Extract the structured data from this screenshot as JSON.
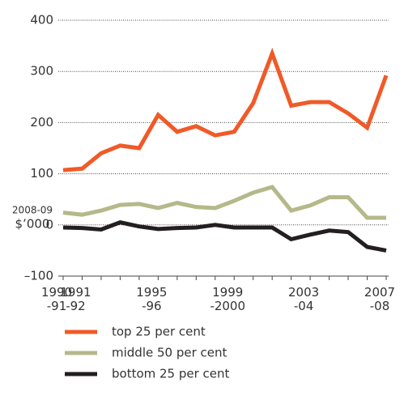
{
  "chart_data": {
    "type": "line",
    "ylabel": [
      "2008-09",
      "$’000"
    ],
    "categories": [
      "1990-91",
      "1991-92",
      null,
      null,
      null,
      "1995-96",
      null,
      null,
      null,
      "1999-2000",
      null,
      null,
      null,
      "2003-04",
      null,
      null,
      null,
      "2007-08"
    ],
    "series": [
      {
        "name": "top 25 per cent",
        "color": "#f05a28",
        "values": [
          107,
          110,
          140,
          155,
          150,
          215,
          182,
          193,
          175,
          182,
          238,
          335,
          233,
          240,
          240,
          218,
          190,
          292
        ]
      },
      {
        "name": "middle 50 per cent",
        "color": "#b5b98a",
        "values": [
          24,
          20,
          28,
          39,
          41,
          33,
          43,
          35,
          33,
          47,
          63,
          74,
          28,
          38,
          54,
          54,
          14,
          14
        ]
      },
      {
        "name": "bottom 25 per cent",
        "color": "#231f20",
        "values": [
          -5,
          -6,
          -9,
          5,
          -3,
          -8,
          -6,
          -5,
          0,
          -5,
          -5,
          -5,
          -28,
          -19,
          -11,
          -14,
          -43,
          -50
        ]
      }
    ],
    "ylim": [
      -100,
      400
    ],
    "yticks": [
      {
        "value": -100,
        "label": "–100"
      },
      0,
      100,
      200,
      300,
      400
    ],
    "grid": true
  }
}
